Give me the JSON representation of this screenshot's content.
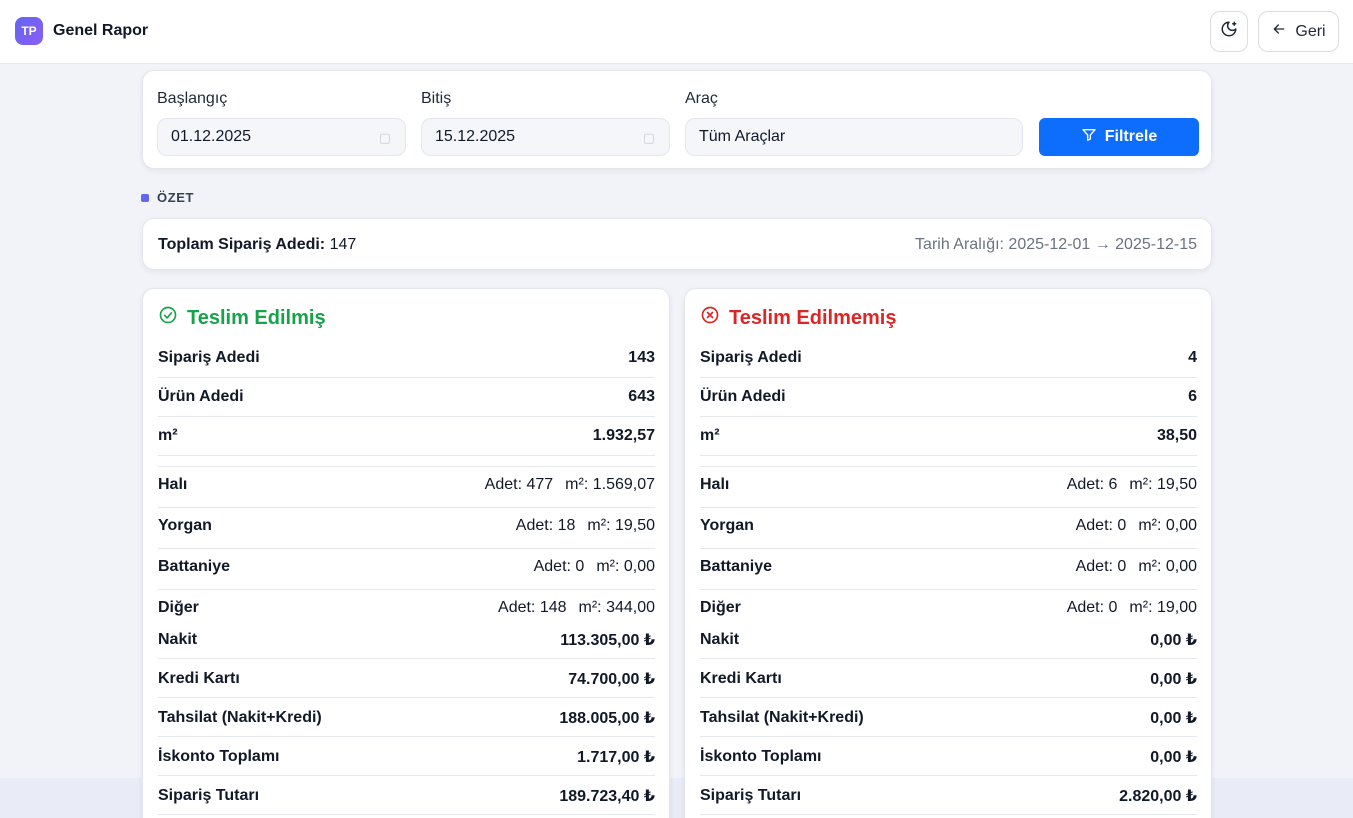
{
  "header": {
    "brand_badge": "TP",
    "title": "Genel Rapor",
    "back_label": "Geri"
  },
  "filters": {
    "start_label": "Başlangıç",
    "start_value": "01.12.2025",
    "end_label": "Bitiş",
    "end_value": "15.12.2025",
    "vehicle_label": "Araç",
    "vehicle_value": "Tüm Araçlar",
    "filter_button": "Filtrele"
  },
  "summary": {
    "section_label": "ÖZET",
    "total_orders_label": "Toplam Sipariş Adedi:",
    "total_orders_value": "147",
    "date_range": "Tarih Aralığı: 2025-12-01 → 2025-12-15"
  },
  "delivered": {
    "title": "Teslim Edilmiş",
    "order_count_label": "Sipariş Adedi",
    "order_count": "143",
    "product_count_label": "Ürün Adedi",
    "product_count": "643",
    "m2_label": "m²",
    "m2": "1.932,57",
    "categories": [
      {
        "name": "Halı",
        "count": "Adet: 477",
        "area": "m²: 1.569,07"
      },
      {
        "name": "Yorgan",
        "count": "Adet: 18",
        "area": "m²: 19,50"
      },
      {
        "name": "Battaniye",
        "count": "Adet: 0",
        "area": "m²: 0,00"
      },
      {
        "name": "Diğer",
        "count": "Adet: 148",
        "area": "m²: 344,00"
      }
    ],
    "payments": [
      {
        "label": "Nakit",
        "value": "113.305,00 ₺"
      },
      {
        "label": "Kredi Kartı",
        "value": "74.700,00 ₺"
      },
      {
        "label": "Tahsilat (Nakit+Kredi)",
        "value": "188.005,00 ₺"
      },
      {
        "label": "İskonto Toplamı",
        "value": "1.717,00 ₺"
      },
      {
        "label": "Sipariş Tutarı",
        "value": "189.723,40 ₺"
      }
    ]
  },
  "undelivered": {
    "title": "Teslim Edilmemiş",
    "order_count_label": "Sipariş Adedi",
    "order_count": "4",
    "product_count_label": "Ürün Adedi",
    "product_count": "6",
    "m2_label": "m²",
    "m2": "38,50",
    "categories": [
      {
        "name": "Halı",
        "count": "Adet: 6",
        "area": "m²: 19,50"
      },
      {
        "name": "Yorgan",
        "count": "Adet: 0",
        "area": "m²: 0,00"
      },
      {
        "name": "Battaniye",
        "count": "Adet: 0",
        "area": "m²: 0,00"
      },
      {
        "name": "Diğer",
        "count": "Adet: 0",
        "area": "m²: 19,00"
      }
    ],
    "payments": [
      {
        "label": "Nakit",
        "value": "0,00 ₺"
      },
      {
        "label": "Kredi Kartı",
        "value": "0,00 ₺"
      },
      {
        "label": "Tahsilat (Nakit+Kredi)",
        "value": "0,00 ₺"
      },
      {
        "label": "İskonto Toplamı",
        "value": "0,00 ₺"
      },
      {
        "label": "Sipariş Tutarı",
        "value": "2.820,00 ₺"
      }
    ]
  },
  "colors": {
    "accent": "#6366f1",
    "primary_button": "#0d6efd",
    "delivered": "#16a34a",
    "undelivered": "#dc2626"
  }
}
